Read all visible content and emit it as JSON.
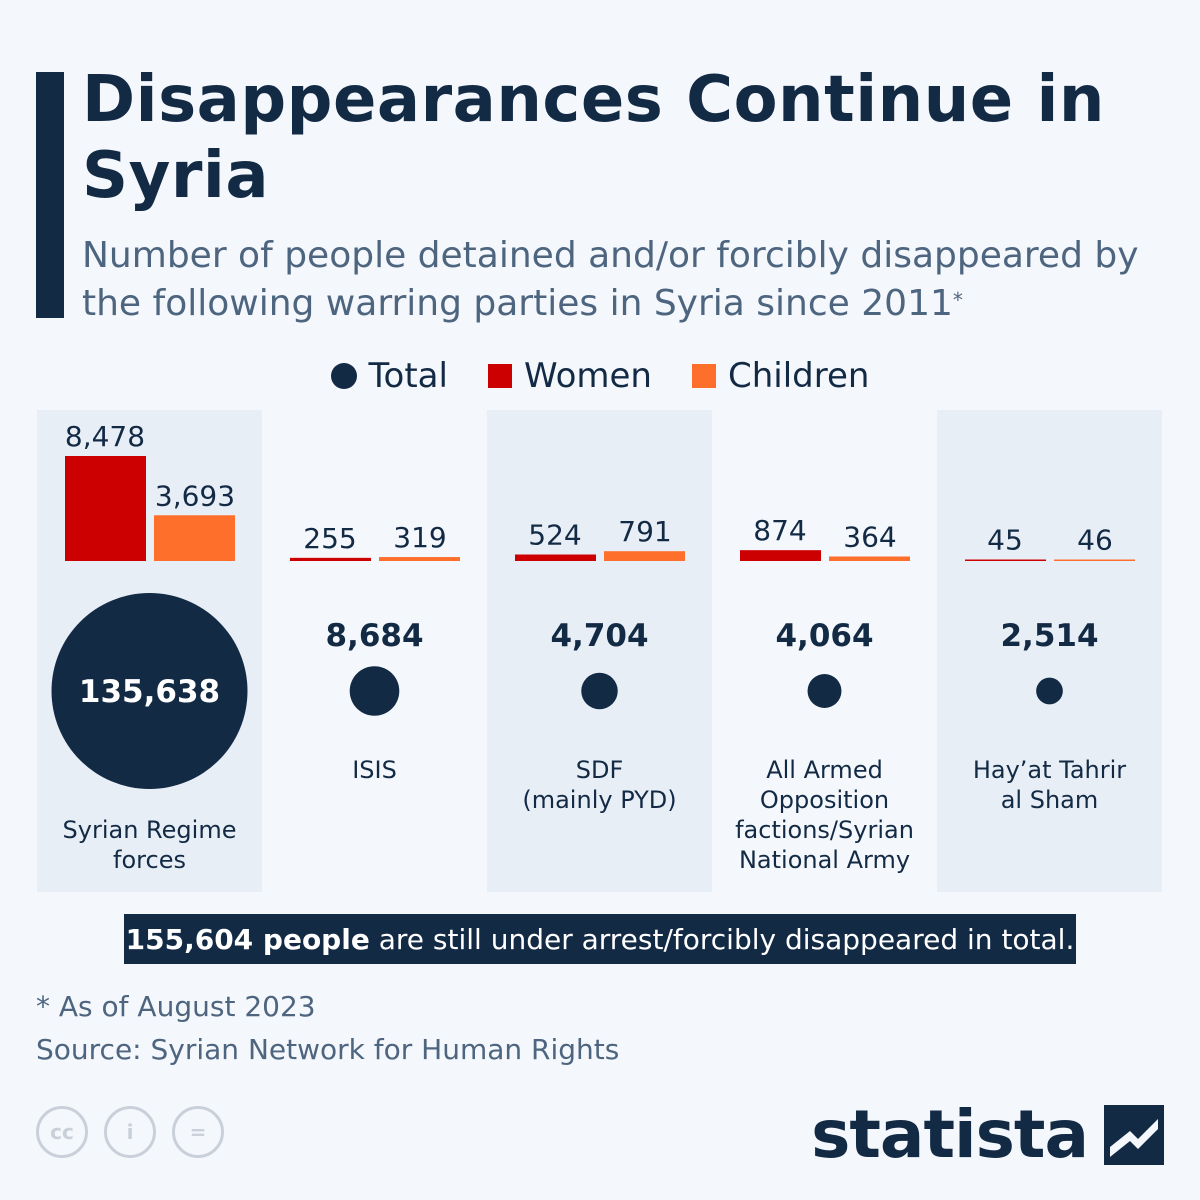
{
  "title": "Disappearances Continue in Syria",
  "subtitle": "Number of people detained and/or forcibly disappeared by the following warring parties in Syria since 2011",
  "subtitle_mark": "*",
  "legend": [
    {
      "label": "Total",
      "shape": "circle",
      "color": "#132a45"
    },
    {
      "label": "Women",
      "shape": "square",
      "color": "#cc0000"
    },
    {
      "label": "Children",
      "shape": "square",
      "color": "#ff6f2c"
    }
  ],
  "chart_data": {
    "type": "bar",
    "categories": [
      "Syrian Regime forces",
      "ISIS",
      "SDF (mainly PYD)",
      "All Armed Opposition factions/Syrian National Army",
      "Hay’at Tahrir al Sham"
    ],
    "category_lines": [
      [
        "Syrian Regime",
        "forces"
      ],
      [
        "ISIS"
      ],
      [
        "SDF",
        "(mainly PYD)"
      ],
      [
        "All Armed",
        "Opposition",
        "factions/Syrian",
        "National Army"
      ],
      [
        "Hay’at Tahrir",
        "al Sham"
      ]
    ],
    "series": [
      {
        "name": "Total",
        "values": [
          135638,
          8684,
          4704,
          4064,
          2514
        ]
      },
      {
        "name": "Women",
        "values": [
          8478,
          255,
          524,
          874,
          45
        ]
      },
      {
        "name": "Children",
        "values": [
          3693,
          319,
          791,
          364,
          46
        ]
      }
    ],
    "value_labels": {
      "total": [
        "135,638",
        "8,684",
        "4,704",
        "4,064",
        "2,514"
      ],
      "women": [
        "8,478",
        "255",
        "524",
        "874",
        "45"
      ],
      "children": [
        "3,693",
        "319",
        "791",
        "364",
        "46"
      ]
    },
    "colors": {
      "total": "#132a45",
      "women": "#cc0000",
      "children": "#ff6f2c",
      "panel": "#e8eef6"
    }
  },
  "total_banner": {
    "bold": "155,604 people",
    "rest": " are still under arrest/forcibly disappeared in total."
  },
  "footnote": "* As of August 2023",
  "source": "Source: Syrian Network for Human Rights",
  "license_icons": [
    "cc-icon",
    "attribution-icon",
    "no-derivatives-icon"
  ],
  "license_glyphs": [
    "cc",
    "i",
    "="
  ],
  "brand": "statista"
}
